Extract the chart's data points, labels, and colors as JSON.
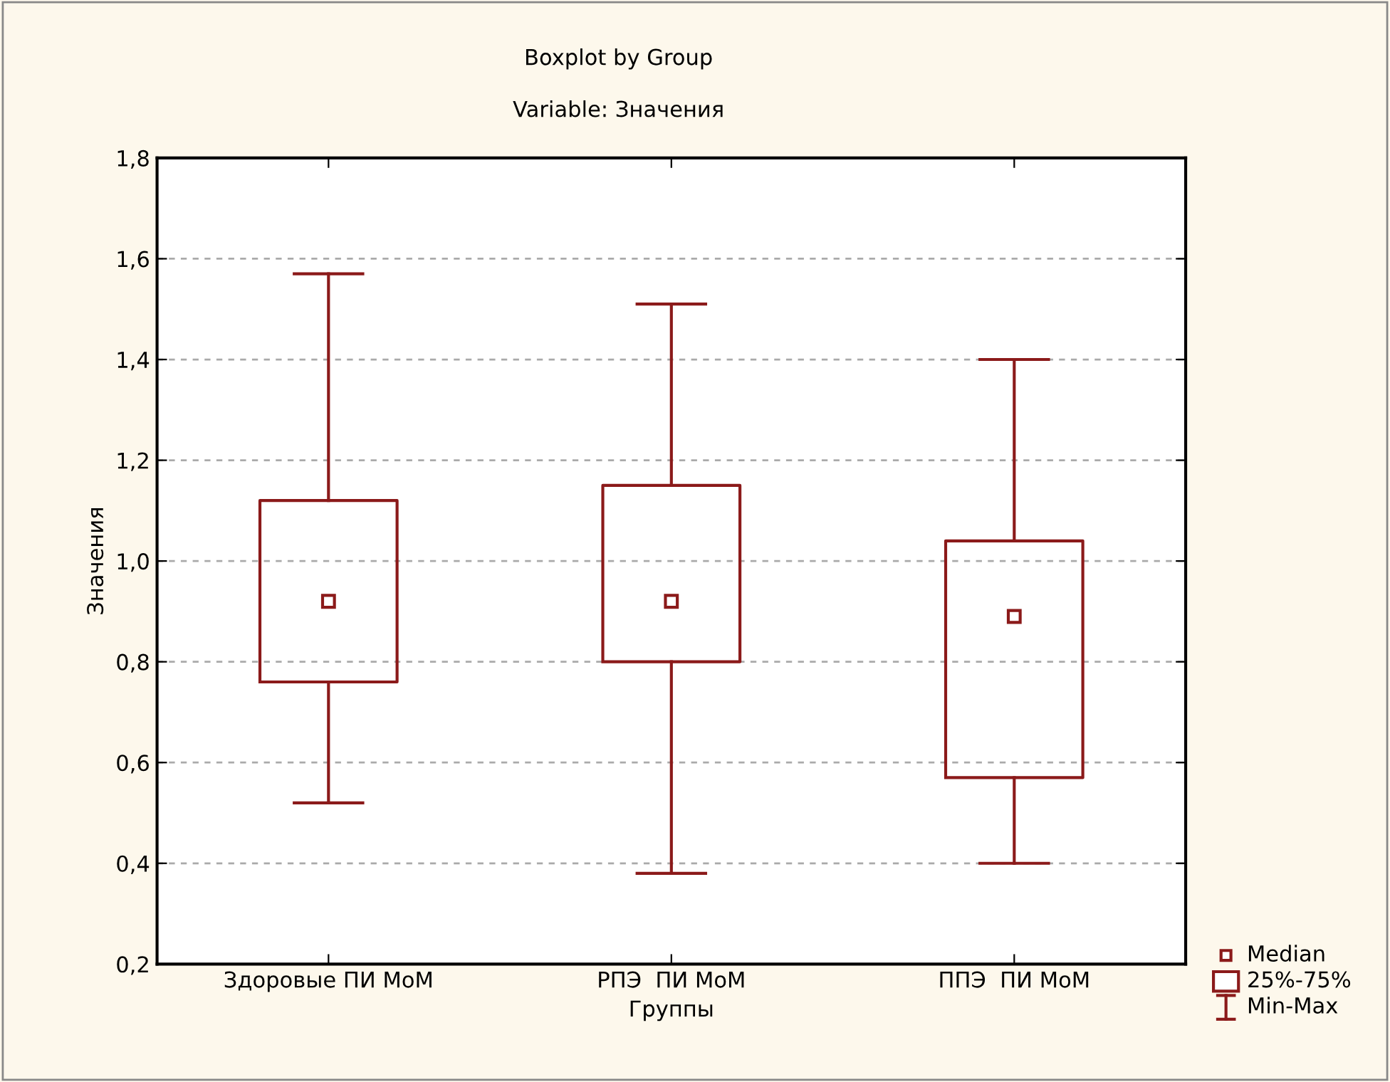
{
  "chart_data": {
    "type": "box",
    "title": "Boxplot by Group",
    "subtitle": "Variable: Значения",
    "xlabel": "Группы",
    "ylabel": "Значения",
    "categories": [
      "Здоровые ПИ МоМ",
      "РПЭ  ПИ МоМ",
      "ППЭ  ПИ МоМ"
    ],
    "series": [
      {
        "color": "#8b1a1a",
        "boxes": [
          {
            "low": 0.52,
            "q1": 0.76,
            "median": 0.92,
            "q3": 1.12,
            "high": 1.57
          },
          {
            "low": 0.38,
            "q1": 0.8,
            "median": 0.92,
            "q3": 1.15,
            "high": 1.51
          },
          {
            "low": 0.4,
            "q1": 0.57,
            "median": 0.89,
            "q3": 1.04,
            "high": 1.4
          }
        ]
      }
    ],
    "ylim": [
      0.2,
      1.8
    ],
    "yticks": [
      {
        "value": 0.2,
        "label": "0,2"
      },
      {
        "value": 0.4,
        "label": "0,4"
      },
      {
        "value": 0.6,
        "label": "0,6"
      },
      {
        "value": 0.8,
        "label": "0,8"
      },
      {
        "value": 1.0,
        "label": "1,0"
      },
      {
        "value": 1.2,
        "label": "1,2"
      },
      {
        "value": 1.4,
        "label": "1,4"
      },
      {
        "value": 1.6,
        "label": "1,6"
      },
      {
        "value": 1.8,
        "label": "1,8"
      }
    ],
    "grid": "y",
    "marker": "square",
    "annotations": [
      "Median",
      "25%-75%",
      "Min-Max"
    ]
  }
}
